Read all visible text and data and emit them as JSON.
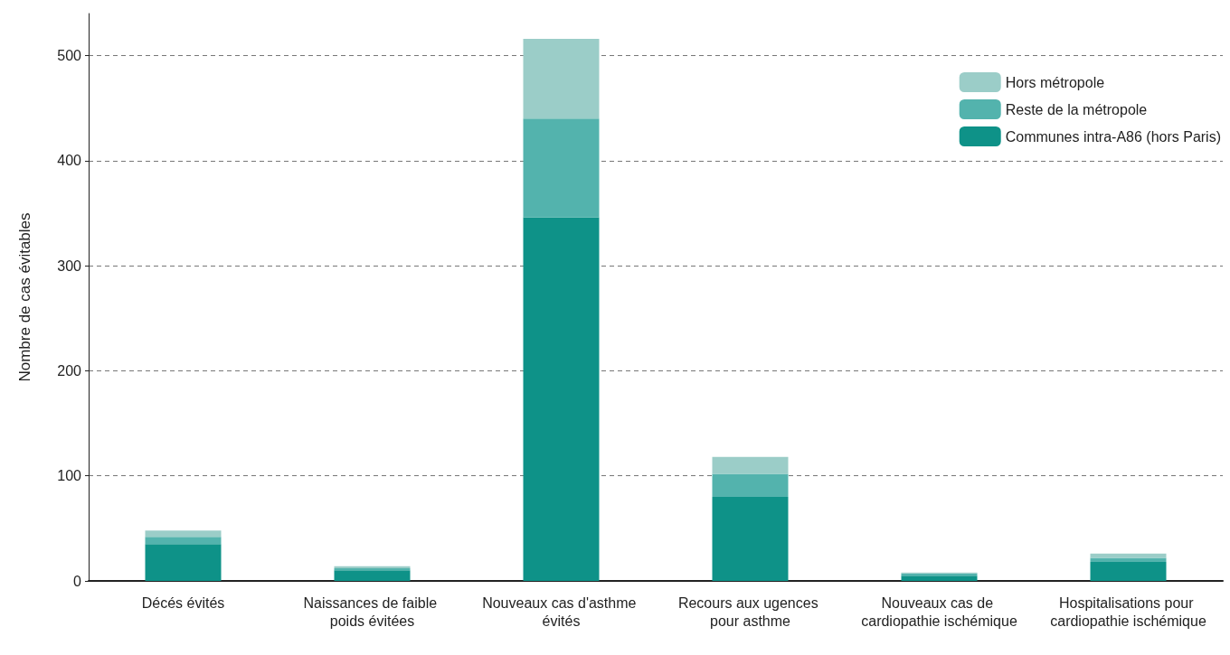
{
  "chart_data": {
    "type": "bar",
    "stacked": true,
    "ylabel": "Nombre de cas évitables",
    "categories": [
      "Décés évités",
      "Naissances de faible poids évitées",
      "Nouveaux cas d'asthme évités",
      "Recours aux ugences pour asthme",
      "Nouveaux cas de cardiopathie ischémique",
      "Hospitalisations pour cardiopathie ischémique"
    ],
    "series": [
      {
        "name": "Communes intra-A86 (hors Paris)",
        "color": "#0e9288",
        "values": [
          35,
          10,
          346,
          80,
          5,
          18
        ]
      },
      {
        "name": "Reste de la métropole",
        "color": "#53b3ad",
        "values": [
          7,
          2,
          94,
          22,
          2,
          4
        ]
      },
      {
        "name": "Hors métropole",
        "color": "#9bcdc8",
        "values": [
          6,
          2,
          76,
          16,
          1,
          4
        ]
      }
    ],
    "ylim": [
      0,
      540
    ],
    "yticks": [
      0,
      100,
      200,
      300,
      400,
      500
    ],
    "grid": "y",
    "legend": "top right"
  }
}
